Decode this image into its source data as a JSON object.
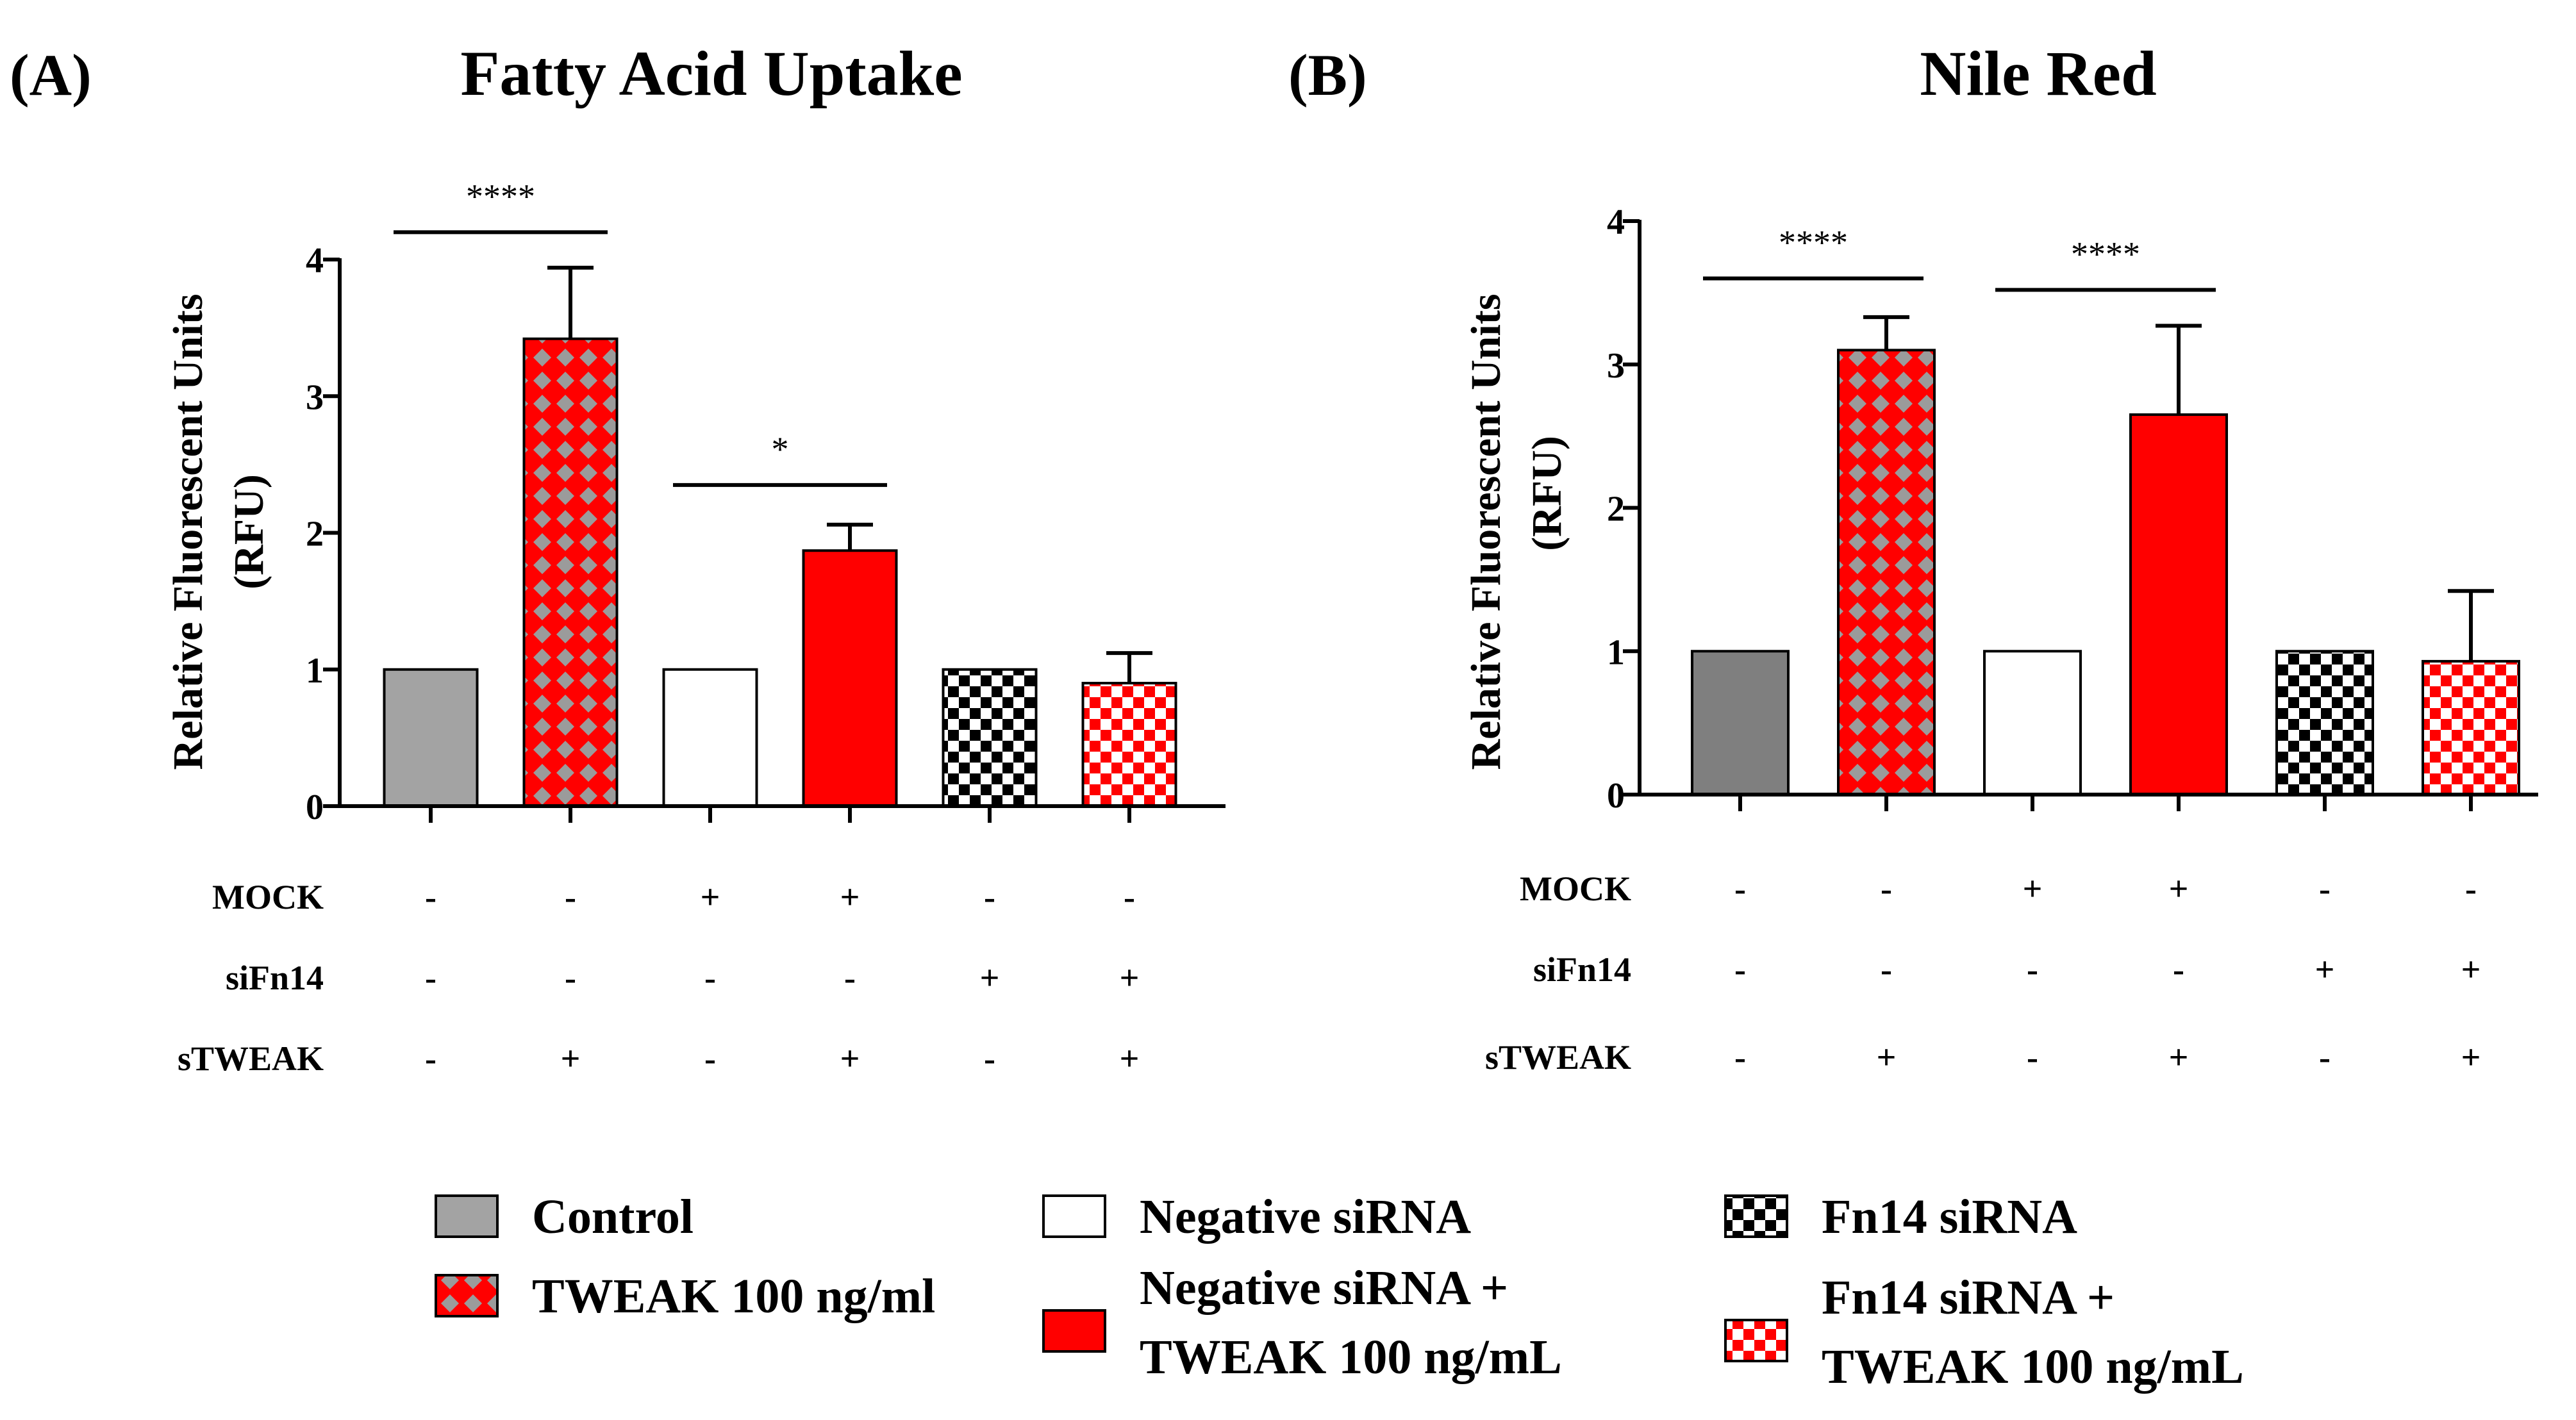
{
  "chart_data": [
    {
      "type": "bar",
      "panel_label": "(A)",
      "title": "Fatty Acid  Uptake",
      "ylabel_line1": "Relative Fluorescent Units",
      "ylabel_line2": "(RFU)",
      "ylim": [
        0,
        4
      ],
      "yticks": [
        "0",
        "1",
        "2",
        "3",
        "4"
      ],
      "categories": [
        "Control",
        "TWEAK 100 ng/ml",
        "Negative siRNA",
        "Negative siRNA + TWEAK 100 ng/mL",
        "Fn14 siRNA",
        "Fn14 siRNA + TWEAK 100 ng/mL"
      ],
      "values": [
        1.0,
        3.42,
        1.0,
        1.87,
        1.0,
        0.9
      ],
      "errors": [
        0,
        0.52,
        0,
        0.19,
        0,
        0.22
      ],
      "significance": [
        {
          "from": 0,
          "to": 1,
          "label": "****",
          "y": 4.2
        },
        {
          "from": 2,
          "to": 3,
          "label": "*",
          "y": 2.35
        }
      ],
      "conditions": [
        {
          "label": "MOCK",
          "signs": [
            "-",
            "-",
            "+",
            "+",
            "-",
            "-"
          ]
        },
        {
          "label": "siFn14",
          "signs": [
            "-",
            "-",
            "-",
            "-",
            "+",
            "+"
          ]
        },
        {
          "label": "sTWEAK",
          "signs": [
            "-",
            "+",
            "-",
            "+",
            "-",
            "+"
          ]
        }
      ]
    },
    {
      "type": "bar",
      "panel_label": "(B)",
      "title": "Nile Red",
      "ylabel_line1": "Relative Fluorescent Units",
      "ylabel_line2": "(RFU)",
      "ylim": [
        0,
        4
      ],
      "yticks": [
        "0",
        "1",
        "2",
        "3",
        "4"
      ],
      "categories": [
        "Control",
        "TWEAK 100 ng/ml",
        "Negative siRNA",
        "Negative siRNA + TWEAK 100 ng/mL",
        "Fn14 siRNA",
        "Fn14 siRNA + TWEAK 100 ng/mL"
      ],
      "values": [
        1.0,
        3.1,
        1.0,
        2.65,
        1.0,
        0.93
      ],
      "errors": [
        0,
        0.23,
        0,
        0.62,
        0,
        0.49
      ],
      "significance": [
        {
          "from": 0,
          "to": 1,
          "label": "****",
          "y": 3.6
        },
        {
          "from": 2,
          "to": 3,
          "label": "****",
          "y": 3.52
        }
      ],
      "conditions": [
        {
          "label": "MOCK",
          "signs": [
            "-",
            "-",
            "+",
            "+",
            "-",
            "-"
          ]
        },
        {
          "label": "siFn14",
          "signs": [
            "-",
            "-",
            "-",
            "-",
            "+",
            "+"
          ]
        },
        {
          "label": "sTWEAK",
          "signs": [
            "-",
            "+",
            "-",
            "+",
            "-",
            "+"
          ]
        }
      ]
    }
  ],
  "legend": [
    {
      "label_lines": [
        "Control"
      ],
      "pattern": "gray"
    },
    {
      "label_lines": [
        "TWEAK 100 ng/ml"
      ],
      "pattern": "red-diamond"
    },
    {
      "label_lines": [
        "Negative siRNA"
      ],
      "pattern": "white"
    },
    {
      "label_lines": [
        "Negative siRNA +",
        "TWEAK 100 ng/mL"
      ],
      "pattern": "red"
    },
    {
      "label_lines": [
        "Fn14 siRNA"
      ],
      "pattern": "black-checker"
    },
    {
      "label_lines": [
        "Fn14 siRNA +",
        "TWEAK 100 ng/mL"
      ],
      "pattern": "red-checker"
    }
  ],
  "colors": {
    "gray_a": "#a3a3a3",
    "gray_b": "#7f7f7f",
    "red": "#ff0000",
    "diamond": "#9b9b9b",
    "black": "#000000",
    "white": "#ffffff"
  }
}
